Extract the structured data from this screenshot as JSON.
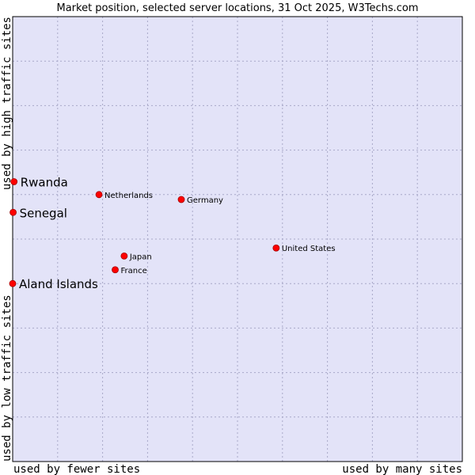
{
  "chart_data": {
    "type": "scatter",
    "title": "Market position, selected server locations, 31 Oct 2025, W3Techs.com",
    "xlabel_left": "used by fewer sites",
    "xlabel_right": "used by many sites",
    "ylabel_bottom": "used by low traffic sites",
    "ylabel_top": "used by high traffic sites",
    "xlim": [
      0,
      100
    ],
    "ylim": [
      0,
      100
    ],
    "grid": true,
    "colors": {
      "plot_bg": "#e3e3f8",
      "grid": "#a8a8c8",
      "border": "#000000",
      "point": "#ff0000",
      "point_stroke": "#a00000"
    },
    "points": [
      {
        "name": "Rwanda",
        "x": 0.3,
        "y": 62.9,
        "highlight": true
      },
      {
        "name": "Senegal",
        "x": 0.1,
        "y": 56.0,
        "highlight": true
      },
      {
        "name": "Aland Islands",
        "x": 0.0,
        "y": 40.0,
        "highlight": true
      },
      {
        "name": "Netherlands",
        "x": 19.2,
        "y": 60.0,
        "highlight": false
      },
      {
        "name": "Germany",
        "x": 37.5,
        "y": 58.9,
        "highlight": false
      },
      {
        "name": "United States",
        "x": 58.6,
        "y": 48.0,
        "highlight": false
      },
      {
        "name": "Japan",
        "x": 24.8,
        "y": 46.2,
        "highlight": false
      },
      {
        "name": "France",
        "x": 22.8,
        "y": 43.1,
        "highlight": false
      }
    ]
  }
}
